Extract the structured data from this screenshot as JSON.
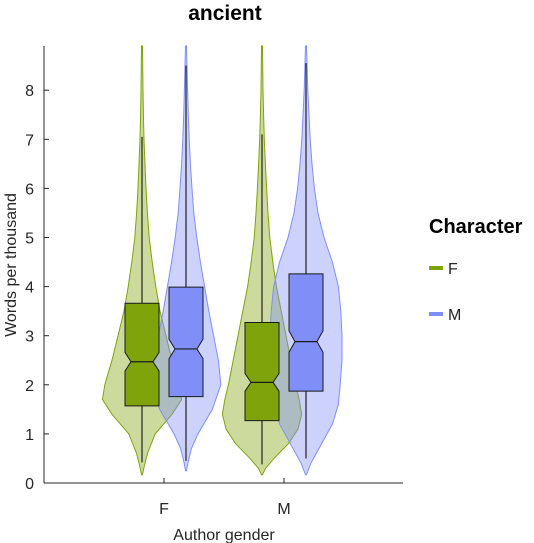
{
  "chart_data": {
    "type": "violin",
    "title": "ancient",
    "xlabel": "Author gender",
    "ylabel": "Words per thousand",
    "categories": [
      "F",
      "M"
    ],
    "ylim": [
      0,
      8.9
    ],
    "yticks": [
      0,
      1,
      2,
      3,
      4,
      5,
      6,
      7,
      8
    ],
    "legend": {
      "title": "Character",
      "position": "right",
      "entries": [
        {
          "label": "F",
          "color": "#7fa30a"
        },
        {
          "label": "M",
          "color": "#7f8ff7"
        }
      ]
    },
    "series": [
      {
        "name": "F",
        "color": "#7fa30a",
        "groups": [
          {
            "category": "F",
            "box": {
              "q1": 1.57,
              "median": 2.47,
              "q3": 3.66,
              "notch_low": 2.28,
              "notch_high": 2.66,
              "whisker_low": 0.42,
              "whisker_high": 7.05
            },
            "violin": {
              "y": [
                0.17,
                0.3,
                0.6,
                1.0,
                1.4,
                1.7,
                2.0,
                2.5,
                3.0,
                3.5,
                4.0,
                4.5,
                5.0,
                5.5,
                6.0,
                6.5,
                7.0,
                7.5,
                8.0,
                8.9
              ],
              "halfwidth": [
                0.004,
                0.015,
                0.045,
                0.11,
                0.25,
                0.33,
                0.31,
                0.25,
                0.2,
                0.15,
                0.115,
                0.085,
                0.06,
                0.045,
                0.033,
                0.025,
                0.017,
                0.012,
                0.008,
                0.004
              ]
            }
          },
          {
            "category": "M",
            "box": {
              "q1": 1.27,
              "median": 2.05,
              "q3": 3.27,
              "notch_low": 1.87,
              "notch_high": 2.23,
              "whisker_low": 0.38,
              "whisker_high": 7.1
            },
            "violin": {
              "y": [
                0.17,
                0.3,
                0.5,
                0.8,
                1.1,
                1.4,
                1.7,
                2.0,
                2.5,
                3.0,
                3.5,
                4.0,
                4.5,
                5.0,
                5.5,
                6.0,
                6.5,
                7.0,
                7.5,
                8.0,
                8.9
              ],
              "halfwidth": [
                0.004,
                0.03,
                0.1,
                0.22,
                0.3,
                0.33,
                0.31,
                0.28,
                0.24,
                0.2,
                0.16,
                0.12,
                0.09,
                0.065,
                0.05,
                0.038,
                0.028,
                0.019,
                0.013,
                0.008,
                0.004
              ]
            }
          }
        ]
      },
      {
        "name": "M",
        "color": "#7f8ff7",
        "groups": [
          {
            "category": "F",
            "box": {
              "q1": 1.76,
              "median": 2.73,
              "q3": 3.99,
              "notch_low": 2.53,
              "notch_high": 2.93,
              "whisker_low": 0.45,
              "whisker_high": 8.5
            },
            "violin": {
              "y": [
                0.25,
                0.4,
                0.7,
                1.0,
                1.5,
                2.0,
                2.5,
                3.0,
                3.5,
                4.0,
                4.5,
                5.0,
                5.5,
                6.0,
                6.5,
                7.0,
                7.5,
                8.0,
                8.5,
                8.9
              ],
              "halfwidth": [
                0.004,
                0.015,
                0.045,
                0.1,
                0.22,
                0.29,
                0.27,
                0.23,
                0.19,
                0.155,
                0.12,
                0.09,
                0.065,
                0.05,
                0.037,
                0.027,
                0.019,
                0.013,
                0.008,
                0.004
              ]
            }
          },
          {
            "category": "M",
            "box": {
              "q1": 1.87,
              "median": 2.88,
              "q3": 4.26,
              "notch_low": 2.66,
              "notch_high": 3.1,
              "whisker_low": 0.5,
              "whisker_high": 8.55
            },
            "violin": {
              "y": [
                0.17,
                0.4,
                0.8,
                1.2,
                1.6,
                2.0,
                2.5,
                3.0,
                3.5,
                4.0,
                4.5,
                5.0,
                5.5,
                6.0,
                6.5,
                7.0,
                7.5,
                8.0,
                8.5,
                8.9
              ],
              "halfwidth": [
                0.004,
                0.04,
                0.13,
                0.22,
                0.27,
                0.285,
                0.3,
                0.3,
                0.29,
                0.27,
                0.22,
                0.15,
                0.1,
                0.07,
                0.05,
                0.035,
                0.025,
                0.015,
                0.009,
                0.004
              ]
            }
          }
        ]
      }
    ]
  }
}
